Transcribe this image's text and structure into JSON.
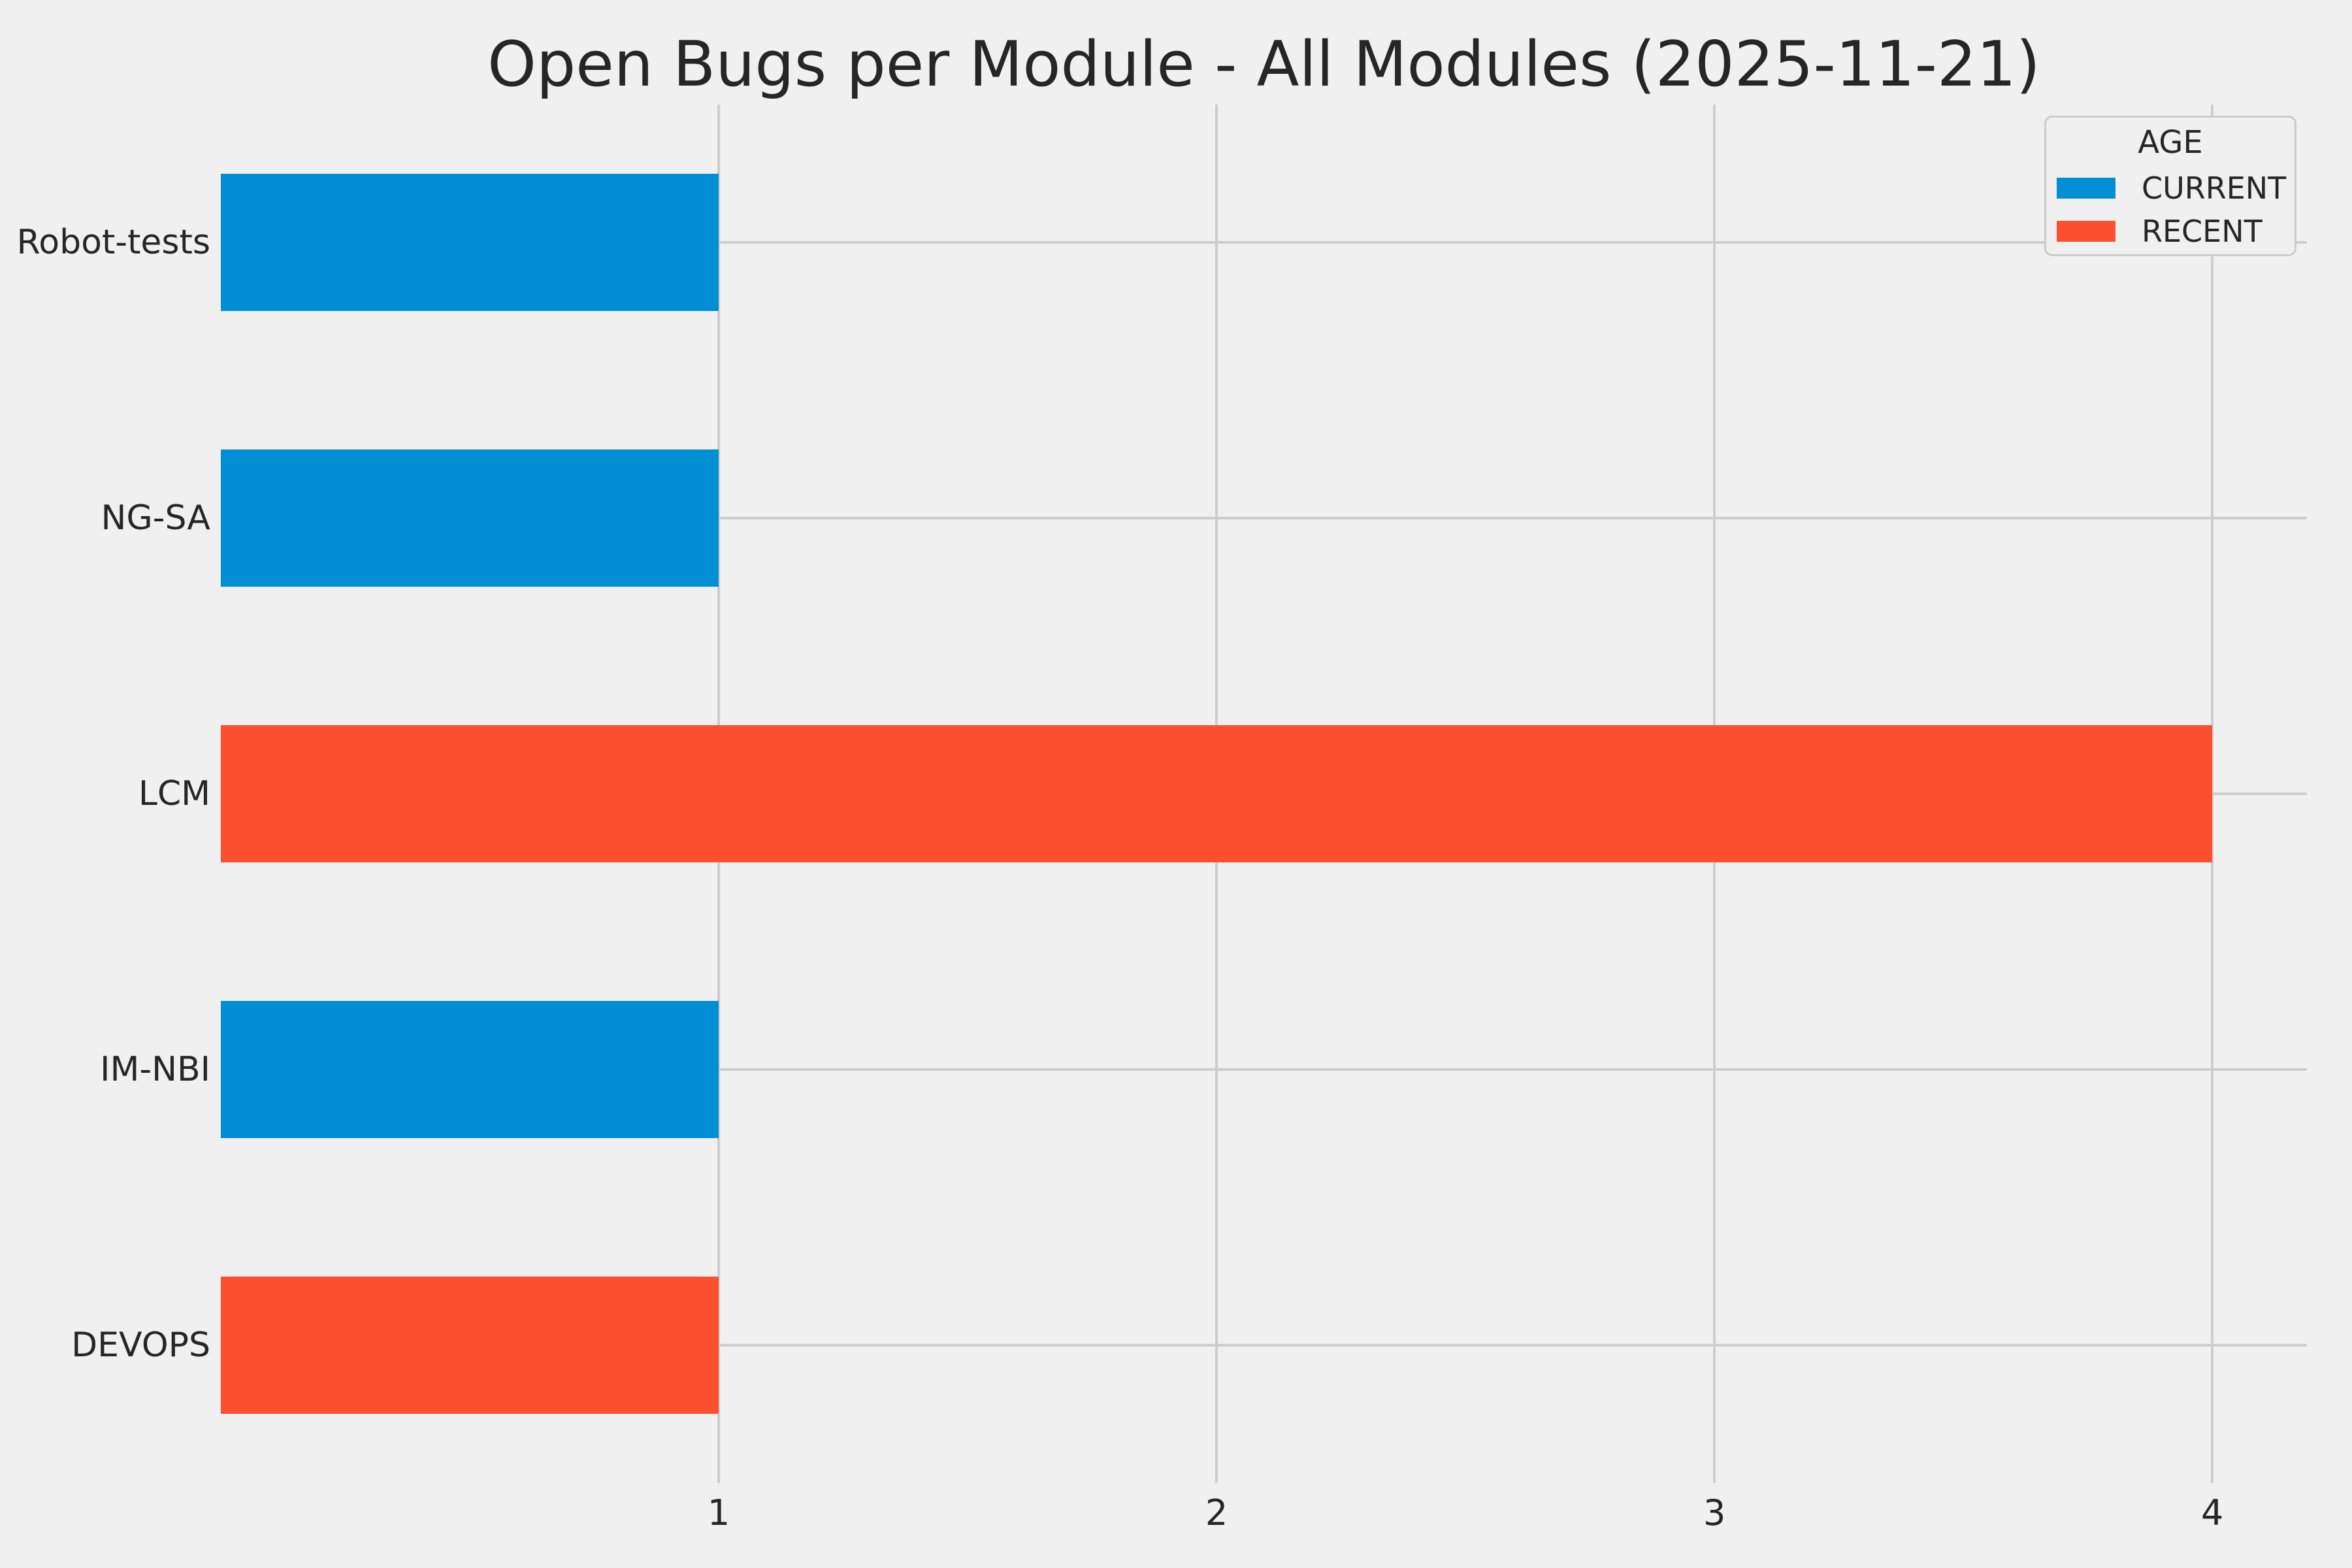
{
  "colors": {
    "background": "#F0F0F0",
    "grid": "#CDCDCD",
    "text": "#262626",
    "series": {
      "CURRENT": "#008FD5",
      "RECENT": "#FC4F30"
    }
  },
  "legend": {
    "title": "AGE",
    "position": "upper right",
    "entries": [
      {
        "label": "CURRENT",
        "color": "#008FD5"
      },
      {
        "label": "RECENT",
        "color": "#FC4F30"
      }
    ]
  },
  "chart_data": {
    "type": "bar",
    "orientation": "horizontal",
    "title": "Open Bugs per Module - All Modules (2025-11-21)",
    "xlabel": "",
    "ylabel": "",
    "categories": [
      "Robot-tests",
      "NG-SA",
      "LCM",
      "IM-NBI",
      "DEVOPS"
    ],
    "values": [
      1,
      1,
      4,
      1,
      1
    ],
    "series_by_bar": [
      "CURRENT",
      "CURRENT",
      "RECENT",
      "CURRENT",
      "RECENT"
    ],
    "xticks": [
      1,
      2,
      3,
      4
    ],
    "xlim": [
      0,
      4.19
    ],
    "grid": true,
    "legend_position": "upper right"
  }
}
